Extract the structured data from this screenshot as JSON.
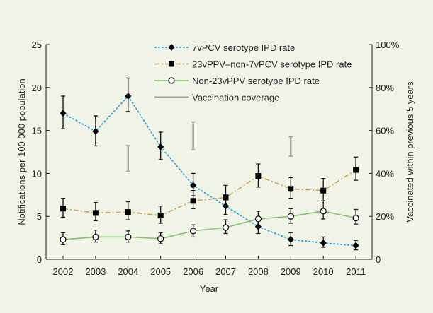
{
  "chart_data": {
    "type": "line",
    "xlabel": "Year",
    "ylabel": "Notifications per 100 000 population",
    "y2label": "Vaccinated within previous 5 years",
    "ylim": [
      0,
      25
    ],
    "yticks": [
      0,
      5,
      10,
      15,
      20,
      25
    ],
    "y2lim": [
      0,
      100
    ],
    "y2ticks": [
      "0",
      "20%",
      "40%",
      "60%",
      "80%",
      "100%"
    ],
    "x": [
      2002,
      2003,
      2004,
      2005,
      2006,
      2007,
      2008,
      2009,
      2010,
      2011
    ],
    "legend_position": "top-center",
    "grid": false,
    "series": [
      {
        "name": "7vPCV serotype IPD rate",
        "color": "#2a9ad6",
        "style": "dotted",
        "marker": "diamond",
        "values": [
          17.0,
          14.9,
          19.0,
          13.1,
          8.6,
          6.2,
          3.8,
          2.3,
          1.9,
          1.6
        ],
        "lower": [
          15.2,
          13.2,
          17.2,
          11.6,
          7.4,
          5.2,
          3.0,
          1.6,
          1.4,
          1.1
        ],
        "upper": [
          19.0,
          16.7,
          21.1,
          14.8,
          10.0,
          7.5,
          4.7,
          3.1,
          2.6,
          2.2
        ]
      },
      {
        "name": "23vPPV–non-7vPCV serotype IPD rate",
        "color": "#c8a35a",
        "style": "dashdot",
        "marker": "square",
        "values": [
          5.9,
          5.4,
          5.5,
          5.1,
          6.8,
          7.2,
          9.7,
          8.2,
          8.0,
          10.4
        ],
        "lower": [
          4.9,
          4.5,
          4.6,
          4.2,
          5.9,
          6.2,
          8.4,
          7.1,
          6.8,
          9.2
        ],
        "upper": [
          7.1,
          6.6,
          6.7,
          6.2,
          8.0,
          8.6,
          11.1,
          9.5,
          9.4,
          11.9
        ]
      },
      {
        "name": "Non-23vPPV serotype IPD rate",
        "color": "#8bbd6e",
        "style": "solid",
        "marker": "open-circle",
        "values": [
          2.3,
          2.6,
          2.6,
          2.4,
          3.3,
          3.7,
          4.7,
          5.0,
          5.6,
          4.8
        ],
        "lower": [
          1.7,
          2.0,
          2.0,
          1.8,
          2.6,
          3.0,
          3.9,
          4.2,
          4.7,
          4.1
        ],
        "upper": [
          3.1,
          3.4,
          3.3,
          3.1,
          4.0,
          4.6,
          5.6,
          5.9,
          6.8,
          5.8
        ]
      },
      {
        "name": "Vaccination coverage",
        "color": "#a0a0a0",
        "style": "range-bar",
        "axis": "right",
        "x": [
          2004,
          2006,
          2009
        ],
        "lower": [
          41,
          51,
          48
        ],
        "upper": [
          53,
          64,
          57
        ]
      }
    ]
  }
}
